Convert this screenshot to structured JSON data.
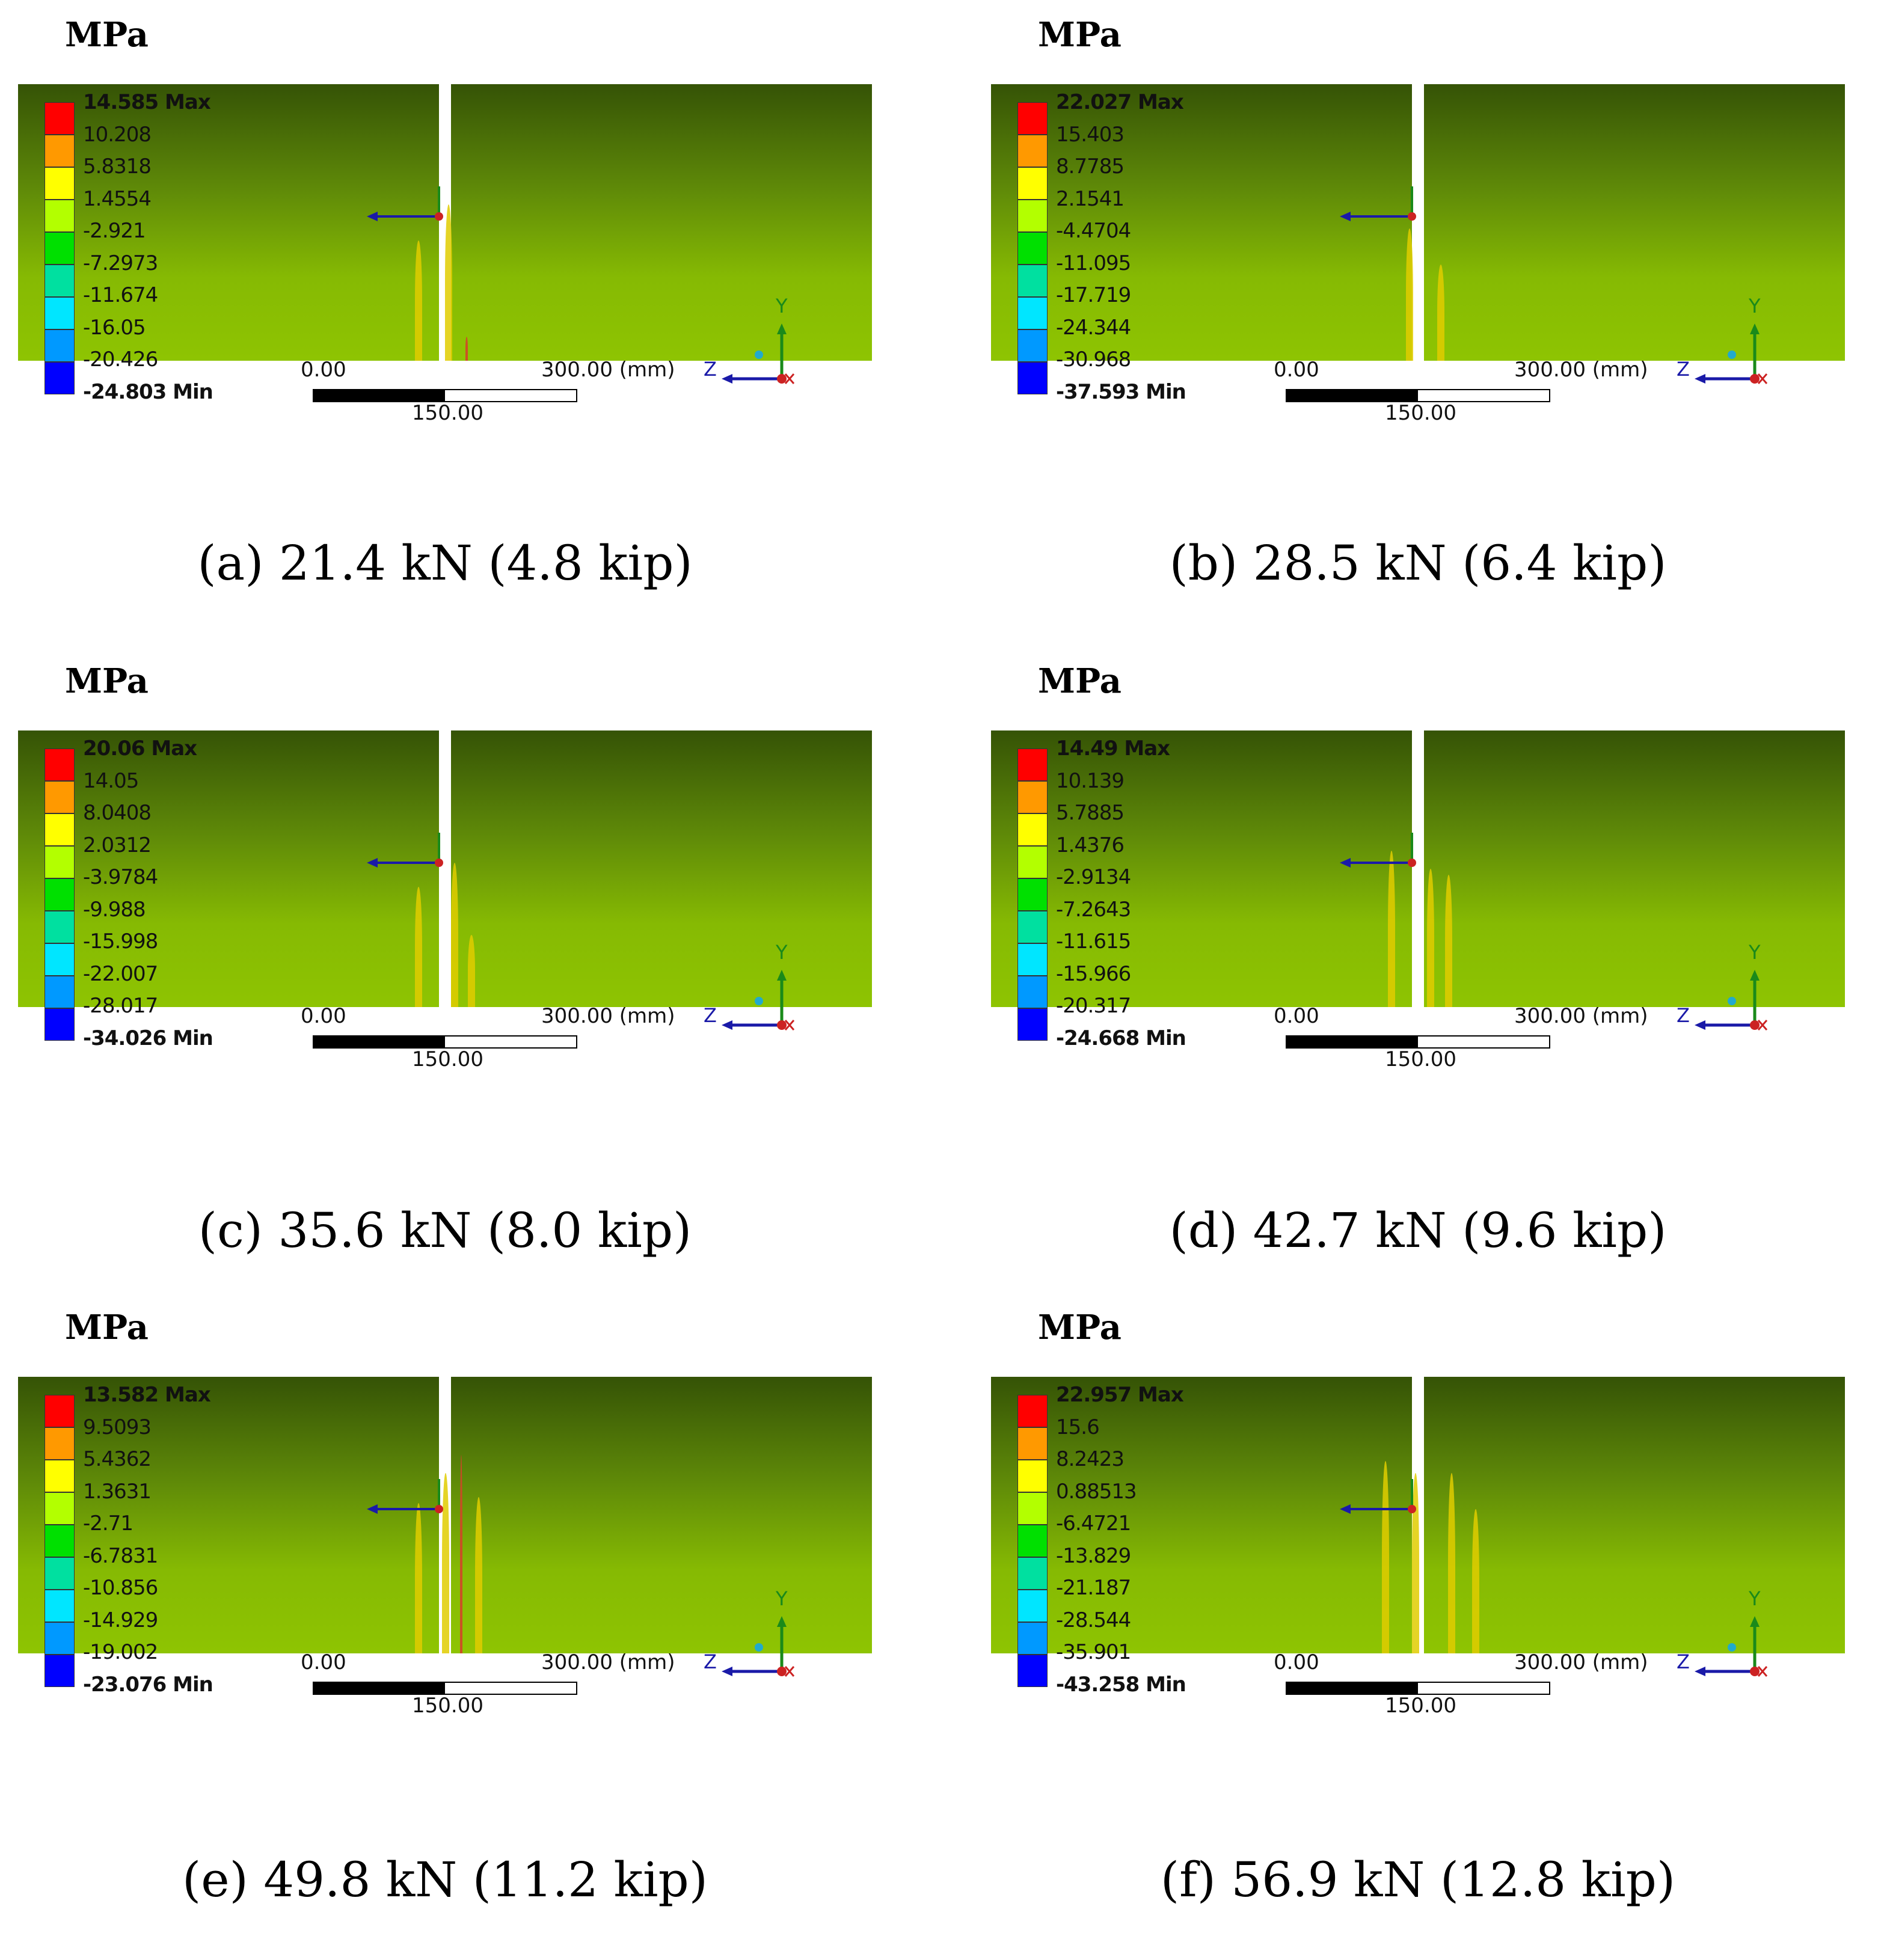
{
  "unit": "MPa",
  "scale_bar": {
    "left": "0.00",
    "right": "300.00 (mm)",
    "mid": "150.00"
  },
  "axes": {
    "y": "Y",
    "z": "Z"
  },
  "legend_colors": [
    "#ff0000",
    "#ff9900",
    "#ffff00",
    "#b3ff00",
    "#00e000",
    "#00e0a0",
    "#00e6ff",
    "#0099ff",
    "#0000ff"
  ],
  "panels": [
    {
      "caption": "(a) 21.4 kN (4.8 kip)",
      "values": [
        "14.585 Max",
        "10.208",
        "5.8318",
        "1.4554",
        "-2.921",
        "-7.2973",
        "-11.674",
        "-16.05",
        "-20.426",
        "-24.803 Min"
      ]
    },
    {
      "caption": "(b) 28.5 kN (6.4 kip)",
      "values": [
        "22.027 Max",
        "15.403",
        "8.7785",
        "2.1541",
        "-4.4704",
        "-11.095",
        "-17.719",
        "-24.344",
        "-30.968",
        "-37.593 Min"
      ]
    },
    {
      "caption": "(c) 35.6 kN (8.0 kip)",
      "values": [
        "20.06 Max",
        "14.05",
        "8.0408",
        "2.0312",
        "-3.9784",
        "-9.988",
        "-15.998",
        "-22.007",
        "-28.017",
        "-34.026 Min"
      ]
    },
    {
      "caption": "(d) 42.7 kN (9.6 kip)",
      "values": [
        "14.49 Max",
        "10.139",
        "5.7885",
        "1.4376",
        "-2.9134",
        "-7.2643",
        "-11.615",
        "-15.966",
        "-20.317",
        "-24.668 Min"
      ]
    },
    {
      "caption": "(e) 49.8 kN (11.2 kip)",
      "values": [
        "13.582 Max",
        "9.5093",
        "5.4362",
        "1.3631",
        "-2.71",
        "-6.7831",
        "-10.856",
        "-14.929",
        "-19.002",
        "-23.076 Min"
      ]
    },
    {
      "caption": "(f) 56.9 kN (12.8 kip)",
      "values": [
        "22.957 Max",
        "15.6",
        "8.2423",
        "0.88513",
        "-6.4721",
        "-13.829",
        "-21.187",
        "-28.544",
        "-35.901",
        "-43.258 Min"
      ]
    }
  ]
}
